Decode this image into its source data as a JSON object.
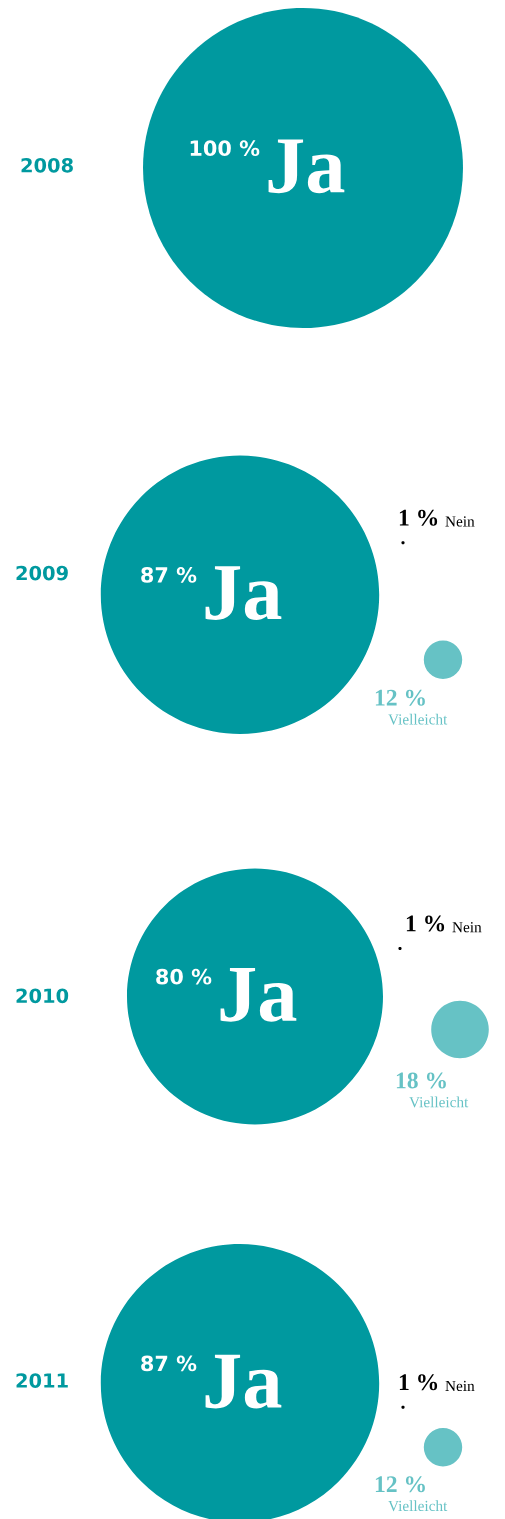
{
  "chart_data": [
    {
      "type": "other",
      "title": "2008",
      "categories": [
        "Ja"
      ],
      "values": [
        100
      ],
      "value_labels": [
        "100 %"
      ],
      "colors": [
        "#00999f"
      ]
    },
    {
      "type": "other",
      "title": "2009",
      "categories": [
        "Ja",
        "Nein",
        "Vielleicht"
      ],
      "values": [
        87,
        1,
        12
      ],
      "value_labels": [
        "87 %",
        "1 %",
        "12 %"
      ],
      "colors": [
        "#00999f",
        "#000000",
        "#66c2c5"
      ]
    },
    {
      "type": "other",
      "title": "2010",
      "categories": [
        "Ja",
        "Nein",
        "Vielleicht"
      ],
      "values": [
        80,
        1,
        18
      ],
      "value_labels": [
        "80 %",
        "1 %",
        "18 %"
      ],
      "colors": [
        "#00999f",
        "#000000",
        "#66c2c5"
      ]
    },
    {
      "type": "other",
      "title": "2011",
      "categories": [
        "Ja",
        "Nein",
        "Vielleicht"
      ],
      "values": [
        87,
        1,
        12
      ],
      "value_labels": [
        "87 %",
        "1 %",
        "12 %"
      ],
      "colors": [
        "#00999f",
        "#000000",
        "#66c2c5"
      ]
    }
  ]
}
